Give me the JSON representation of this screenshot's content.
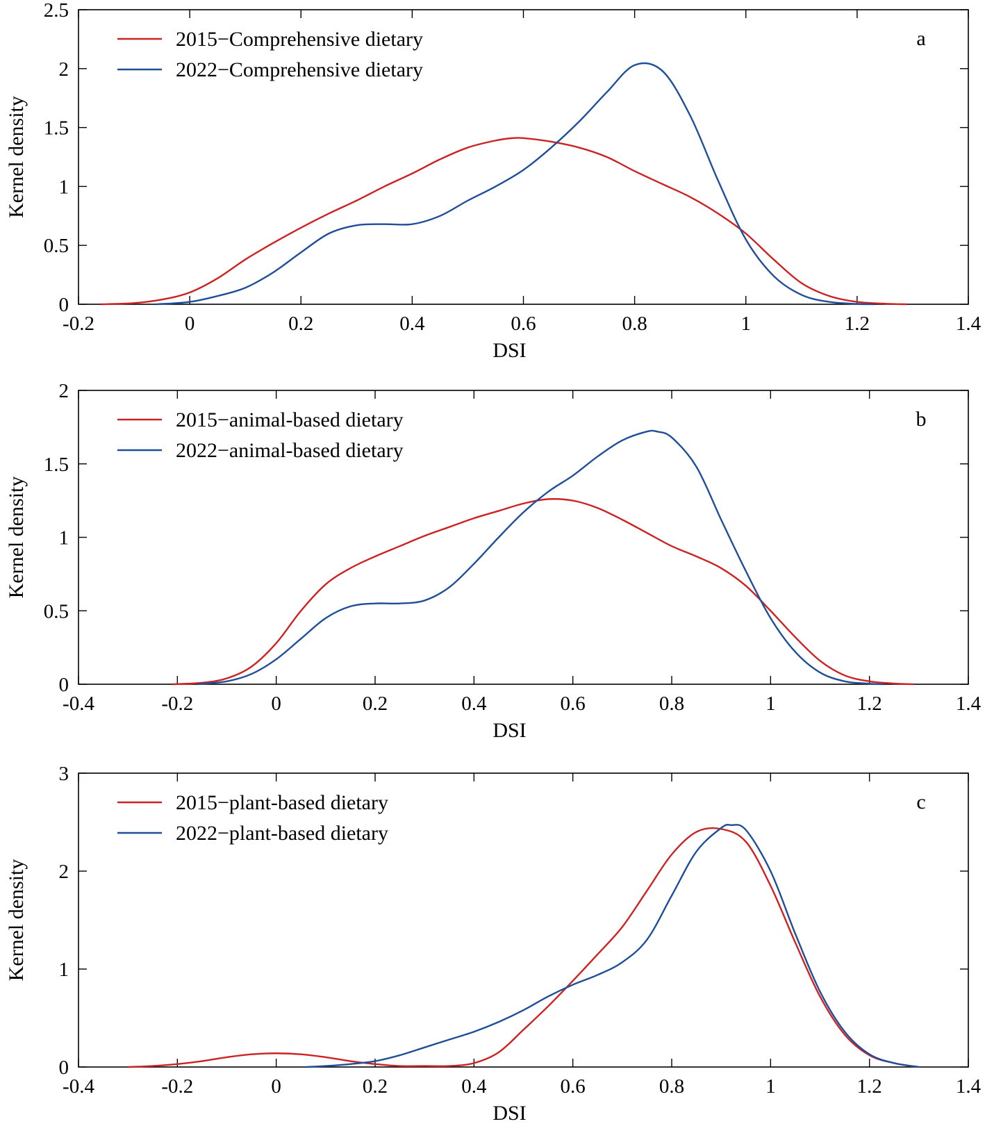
{
  "chart_data": [
    {
      "type": "line",
      "panel": "a",
      "xlabel": "DSI",
      "ylabel": "Kernel density",
      "xlim": [
        -0.2,
        1.4
      ],
      "ylim": [
        0,
        2.5
      ],
      "xticks": [
        -0.2,
        0,
        0.2,
        0.4,
        0.6,
        0.8,
        1,
        1.2,
        1.4
      ],
      "xtick_labels": [
        "-0.2",
        "0",
        "0.2",
        "0.4",
        "0.6",
        "0.8",
        "1",
        "1.2",
        "1.4"
      ],
      "yticks": [
        0,
        0.5,
        1,
        1.5,
        2,
        2.5
      ],
      "ytick_labels": [
        "0",
        "0.5",
        "1",
        "1.5",
        "2",
        "2.5"
      ],
      "legend_position": "top-left",
      "series": [
        {
          "name": "2015−Comprehensive dietary",
          "color": "#cc2222",
          "x": [
            -0.16,
            -0.1,
            -0.05,
            0,
            0.05,
            0.1,
            0.15,
            0.2,
            0.25,
            0.3,
            0.35,
            0.4,
            0.45,
            0.5,
            0.55,
            0.58,
            0.6,
            0.65,
            0.7,
            0.75,
            0.8,
            0.85,
            0.9,
            0.95,
            1.0,
            1.05,
            1.1,
            1.15,
            1.2,
            1.25,
            1.29
          ],
          "y": [
            0.0,
            0.01,
            0.04,
            0.1,
            0.22,
            0.38,
            0.52,
            0.65,
            0.77,
            0.88,
            1.0,
            1.11,
            1.23,
            1.33,
            1.39,
            1.41,
            1.41,
            1.38,
            1.33,
            1.25,
            1.13,
            1.02,
            0.91,
            0.77,
            0.6,
            0.38,
            0.18,
            0.07,
            0.02,
            0.005,
            0.0
          ]
        },
        {
          "name": "2022−Comprehensive dietary",
          "color": "#1f4e99",
          "x": [
            -0.06,
            0,
            0.05,
            0.1,
            0.15,
            0.2,
            0.25,
            0.3,
            0.35,
            0.4,
            0.45,
            0.5,
            0.55,
            0.6,
            0.65,
            0.7,
            0.75,
            0.8,
            0.85,
            0.9,
            0.95,
            1.0,
            1.05,
            1.1,
            1.15,
            1.2,
            1.23
          ],
          "y": [
            0.0,
            0.02,
            0.07,
            0.14,
            0.27,
            0.44,
            0.6,
            0.67,
            0.68,
            0.68,
            0.75,
            0.88,
            1.0,
            1.14,
            1.33,
            1.55,
            1.8,
            2.03,
            1.98,
            1.6,
            1.05,
            0.55,
            0.24,
            0.08,
            0.02,
            0.003,
            0.0
          ]
        }
      ]
    },
    {
      "type": "line",
      "panel": "b",
      "xlabel": "DSI",
      "ylabel": "Kernel density",
      "xlim": [
        -0.4,
        1.4
      ],
      "ylim": [
        0,
        2
      ],
      "xticks": [
        -0.4,
        -0.2,
        0,
        0.2,
        0.4,
        0.6,
        0.8,
        1,
        1.2,
        1.4
      ],
      "xtick_labels": [
        "-0.4",
        "-0.2",
        "0",
        "0.2",
        "0.4",
        "0.6",
        "0.8",
        "1",
        "1.2",
        "1.4"
      ],
      "yticks": [
        0,
        0.5,
        1,
        1.5,
        2
      ],
      "ytick_labels": [
        "0",
        "0.5",
        "1",
        "1.5",
        "2"
      ],
      "legend_position": "top-left",
      "series": [
        {
          "name": "2015−animal-based dietary",
          "color": "#cc2222",
          "x": [
            -0.21,
            -0.15,
            -0.1,
            -0.05,
            0,
            0.05,
            0.1,
            0.15,
            0.2,
            0.25,
            0.3,
            0.35,
            0.4,
            0.45,
            0.5,
            0.55,
            0.6,
            0.65,
            0.7,
            0.75,
            0.8,
            0.85,
            0.9,
            0.95,
            1.0,
            1.05,
            1.1,
            1.15,
            1.2,
            1.25,
            1.29
          ],
          "y": [
            0.0,
            0.01,
            0.04,
            0.12,
            0.28,
            0.5,
            0.68,
            0.79,
            0.87,
            0.94,
            1.01,
            1.07,
            1.13,
            1.18,
            1.23,
            1.26,
            1.25,
            1.2,
            1.12,
            1.03,
            0.94,
            0.87,
            0.79,
            0.67,
            0.5,
            0.32,
            0.16,
            0.06,
            0.02,
            0.005,
            0.0
          ]
        },
        {
          "name": "2022−animal-based dietary",
          "color": "#1f4e99",
          "x": [
            -0.16,
            -0.1,
            -0.05,
            0,
            0.05,
            0.1,
            0.15,
            0.2,
            0.25,
            0.3,
            0.35,
            0.4,
            0.45,
            0.5,
            0.55,
            0.6,
            0.65,
            0.7,
            0.75,
            0.77,
            0.8,
            0.85,
            0.9,
            0.95,
            1.0,
            1.05,
            1.1,
            1.15,
            1.2,
            1.23
          ],
          "y": [
            0.0,
            0.02,
            0.07,
            0.17,
            0.31,
            0.45,
            0.53,
            0.55,
            0.55,
            0.57,
            0.66,
            0.82,
            1.0,
            1.17,
            1.31,
            1.42,
            1.55,
            1.66,
            1.72,
            1.72,
            1.68,
            1.48,
            1.12,
            0.77,
            0.45,
            0.22,
            0.08,
            0.02,
            0.004,
            0.0
          ]
        }
      ]
    },
    {
      "type": "line",
      "panel": "c",
      "xlabel": "DSI",
      "ylabel": "Kernel density",
      "xlim": [
        -0.4,
        1.4
      ],
      "ylim": [
        0,
        3
      ],
      "xticks": [
        -0.4,
        -0.2,
        0,
        0.2,
        0.4,
        0.6,
        0.8,
        1,
        1.2,
        1.4
      ],
      "xtick_labels": [
        "-0.4",
        "-0.2",
        "0",
        "0.2",
        "0.4",
        "0.6",
        "0.8",
        "1",
        "1.2",
        "1.4"
      ],
      "yticks": [
        0,
        1,
        2,
        3
      ],
      "ytick_labels": [
        "0",
        "1",
        "2",
        "3"
      ],
      "legend_position": "top-left",
      "series": [
        {
          "name": "2015−plant-based dietary",
          "color": "#cc2222",
          "x": [
            -0.3,
            -0.25,
            -0.2,
            -0.15,
            -0.1,
            -0.05,
            0,
            0.05,
            0.1,
            0.15,
            0.2,
            0.25,
            0.3,
            0.35,
            0.4,
            0.45,
            0.5,
            0.55,
            0.6,
            0.65,
            0.7,
            0.75,
            0.8,
            0.85,
            0.9,
            0.95,
            1.0,
            1.05,
            1.1,
            1.15,
            1.2,
            1.25,
            1.3
          ],
          "y": [
            0.0,
            0.01,
            0.03,
            0.06,
            0.1,
            0.13,
            0.14,
            0.13,
            0.1,
            0.06,
            0.03,
            0.01,
            0.01,
            0.01,
            0.04,
            0.15,
            0.38,
            0.62,
            0.88,
            1.15,
            1.43,
            1.8,
            2.17,
            2.4,
            2.43,
            2.3,
            1.85,
            1.27,
            0.72,
            0.33,
            0.12,
            0.04,
            0.0
          ]
        },
        {
          "name": "2022−plant-based dietary",
          "color": "#1f4e99",
          "x": [
            0.06,
            0.1,
            0.15,
            0.2,
            0.25,
            0.3,
            0.35,
            0.4,
            0.45,
            0.5,
            0.55,
            0.6,
            0.65,
            0.7,
            0.75,
            0.8,
            0.85,
            0.9,
            0.92,
            0.95,
            1.0,
            1.05,
            1.1,
            1.15,
            1.2,
            1.25,
            1.3
          ],
          "y": [
            0.0,
            0.01,
            0.03,
            0.06,
            0.12,
            0.2,
            0.28,
            0.36,
            0.46,
            0.58,
            0.72,
            0.84,
            0.94,
            1.07,
            1.3,
            1.75,
            2.2,
            2.44,
            2.47,
            2.42,
            2.0,
            1.36,
            0.77,
            0.36,
            0.13,
            0.04,
            0.0
          ]
        }
      ]
    }
  ]
}
